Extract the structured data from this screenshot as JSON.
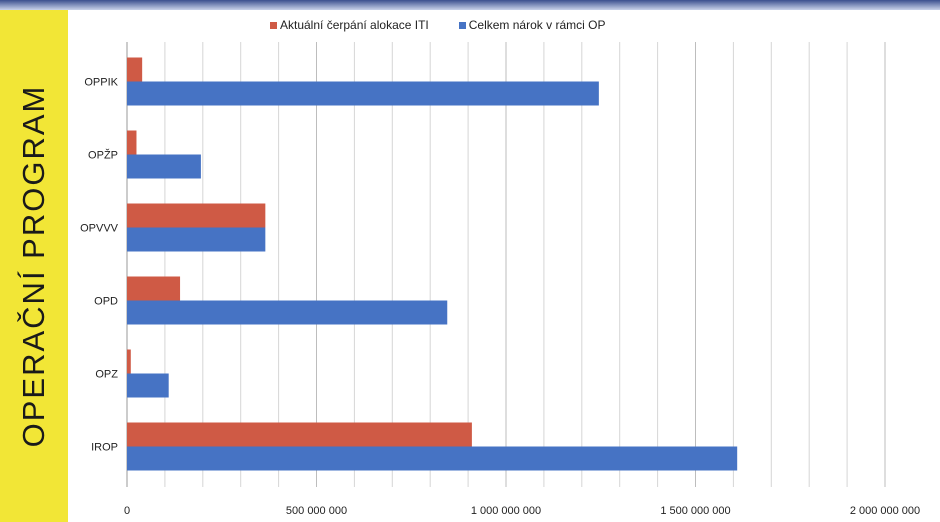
{
  "side_label": "OPERAČNÍ PROGRAM",
  "chart_data": {
    "type": "bar",
    "orientation": "horizontal",
    "categories": [
      "OPPIK",
      "OPŽP",
      "OPVVV",
      "OPD",
      "OPZ",
      "IROP"
    ],
    "series": [
      {
        "name": "Aktuální čerpání alokace ITI",
        "color": "#cf5a45",
        "values": [
          40000000,
          25000000,
          365000000,
          140000000,
          10000000,
          910000000
        ]
      },
      {
        "name": "Celkem nárok v rámci OP",
        "color": "#4673c4",
        "values": [
          1245000000,
          195000000,
          365000000,
          845000000,
          110000000,
          1610000000
        ]
      }
    ],
    "xlim": [
      0,
      2000000000
    ],
    "xticks": [
      0,
      500000000,
      1000000000,
      1500000000,
      2000000000
    ],
    "xtick_labels": [
      "0",
      "500 000 000",
      "1 000 000 000",
      "1 500 000 000",
      "2 000 000 000"
    ],
    "minor_gridline_step": 100000000,
    "grid": true,
    "legend_position": "top"
  }
}
